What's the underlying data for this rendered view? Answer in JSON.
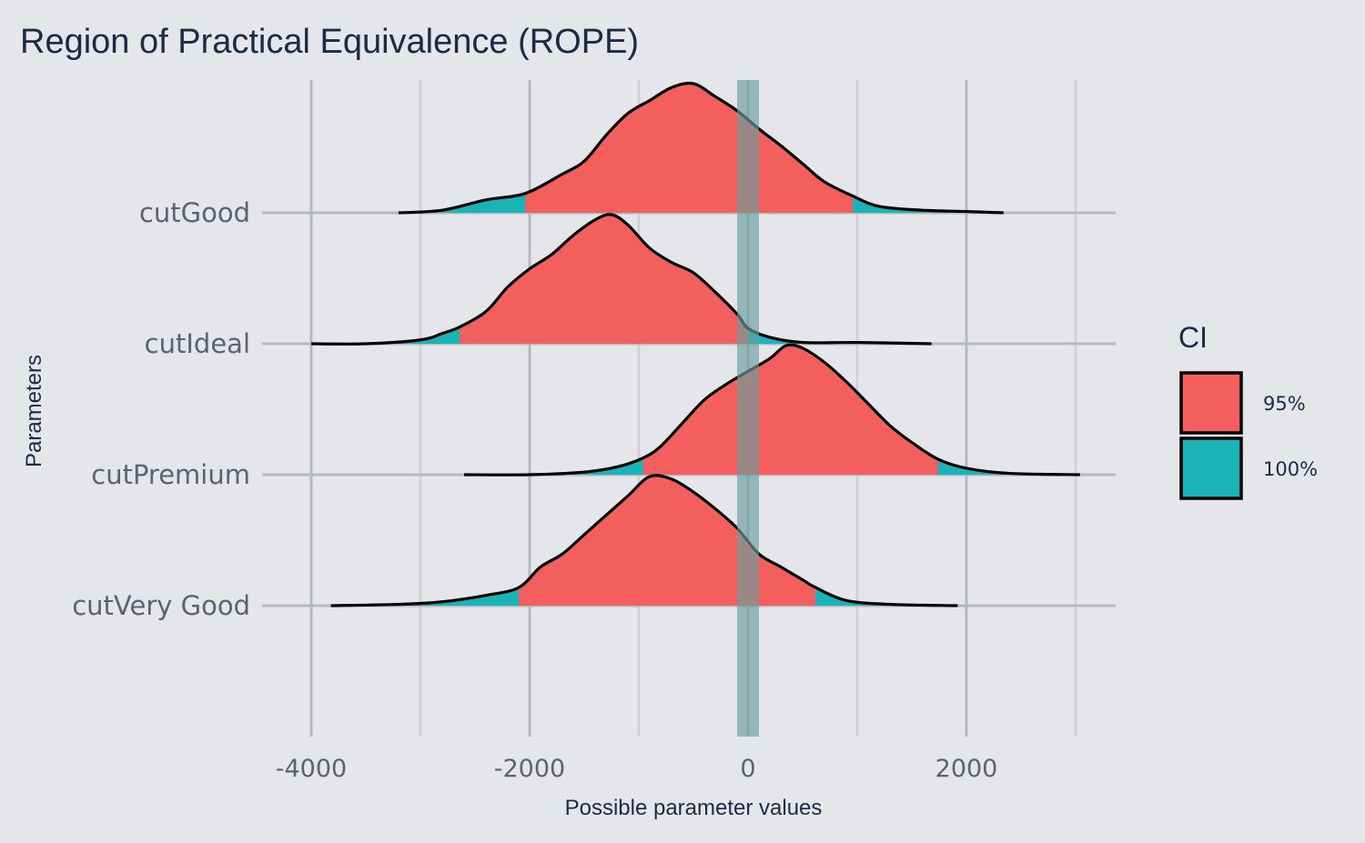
{
  "chart_data": {
    "type": "density-ridges",
    "title": "Region of Practical Equivalence (ROPE)",
    "xlabel": "Possible parameter values",
    "ylabel": "Parameters",
    "xlim": [
      -4200,
      3400
    ],
    "x_ticks": [
      -4000,
      -2000,
      0,
      2000
    ],
    "x_tick_labels": [
      "-4000",
      "-2000",
      "0",
      "2000"
    ],
    "rope": {
      "low": -100,
      "high": 100,
      "color": "#6a9e9e"
    },
    "categories": [
      "cutGood",
      "cutIdeal",
      "cutPremium",
      "cutVery Good"
    ],
    "ci_colors": {
      "95%": "#f25f5c",
      "100%": "#1ab3b8"
    },
    "legend": {
      "title": "CI",
      "position": "right",
      "entries": [
        "95%",
        "100%"
      ]
    },
    "series": [
      {
        "name": "cutGood",
        "ci95": [
          -2040,
          960
        ],
        "range": [
          -3200,
          2340
        ],
        "density": [
          [
            -3200,
            0
          ],
          [
            -2800,
            0.02
          ],
          [
            -2400,
            0.1
          ],
          [
            -2040,
            0.15
          ],
          [
            -1700,
            0.3
          ],
          [
            -1500,
            0.4
          ],
          [
            -1300,
            0.6
          ],
          [
            -1100,
            0.77
          ],
          [
            -900,
            0.87
          ],
          [
            -700,
            0.97
          ],
          [
            -500,
            1
          ],
          [
            -300,
            0.9
          ],
          [
            -100,
            0.79
          ],
          [
            100,
            0.65
          ],
          [
            300,
            0.52
          ],
          [
            500,
            0.38
          ],
          [
            700,
            0.24
          ],
          [
            960,
            0.13
          ],
          [
            1200,
            0.05
          ],
          [
            1600,
            0.02
          ],
          [
            2000,
            0.01
          ],
          [
            2340,
            0
          ]
        ]
      },
      {
        "name": "cutIdeal",
        "ci95": [
          -2640,
          0
        ],
        "range": [
          -4000,
          1680
        ],
        "density": [
          [
            -4000,
            0
          ],
          [
            -3500,
            0
          ],
          [
            -3000,
            0.03
          ],
          [
            -2800,
            0.08
          ],
          [
            -2640,
            0.13
          ],
          [
            -2400,
            0.25
          ],
          [
            -2200,
            0.44
          ],
          [
            -2000,
            0.58
          ],
          [
            -1800,
            0.69
          ],
          [
            -1600,
            0.84
          ],
          [
            -1400,
            0.96
          ],
          [
            -1250,
            1
          ],
          [
            -1100,
            0.92
          ],
          [
            -900,
            0.74
          ],
          [
            -700,
            0.63
          ],
          [
            -500,
            0.55
          ],
          [
            -300,
            0.4
          ],
          [
            -100,
            0.23
          ],
          [
            0,
            0.12
          ],
          [
            200,
            0.05
          ],
          [
            500,
            0.01
          ],
          [
            1000,
            0.01
          ],
          [
            1680,
            0
          ]
        ]
      },
      {
        "name": "cutPremium",
        "ci95": [
          -960,
          1740
        ],
        "range": [
          -2600,
          3040
        ],
        "density": [
          [
            -2600,
            0
          ],
          [
            -2000,
            0
          ],
          [
            -1500,
            0.02
          ],
          [
            -1200,
            0.06
          ],
          [
            -960,
            0.13
          ],
          [
            -800,
            0.22
          ],
          [
            -600,
            0.4
          ],
          [
            -400,
            0.58
          ],
          [
            -200,
            0.7
          ],
          [
            0,
            0.8
          ],
          [
            200,
            0.9
          ],
          [
            350,
            1
          ],
          [
            500,
            0.98
          ],
          [
            700,
            0.87
          ],
          [
            900,
            0.72
          ],
          [
            1100,
            0.55
          ],
          [
            1300,
            0.38
          ],
          [
            1500,
            0.25
          ],
          [
            1740,
            0.12
          ],
          [
            2000,
            0.05
          ],
          [
            2400,
            0.01
          ],
          [
            3040,
            0
          ]
        ]
      },
      {
        "name": "cutVery Good",
        "ci95": [
          -2100,
          620
        ],
        "range": [
          -3820,
          1920
        ],
        "density": [
          [
            -3820,
            0
          ],
          [
            -3200,
            0.01
          ],
          [
            -2800,
            0.03
          ],
          [
            -2400,
            0.08
          ],
          [
            -2100,
            0.14
          ],
          [
            -1900,
            0.3
          ],
          [
            -1700,
            0.4
          ],
          [
            -1500,
            0.55
          ],
          [
            -1300,
            0.7
          ],
          [
            -1100,
            0.85
          ],
          [
            -900,
            1
          ],
          [
            -700,
            0.98
          ],
          [
            -500,
            0.88
          ],
          [
            -300,
            0.75
          ],
          [
            -100,
            0.6
          ],
          [
            100,
            0.4
          ],
          [
            300,
            0.3
          ],
          [
            500,
            0.2
          ],
          [
            620,
            0.14
          ],
          [
            900,
            0.04
          ],
          [
            1300,
            0.01
          ],
          [
            1920,
            0
          ]
        ]
      }
    ]
  }
}
